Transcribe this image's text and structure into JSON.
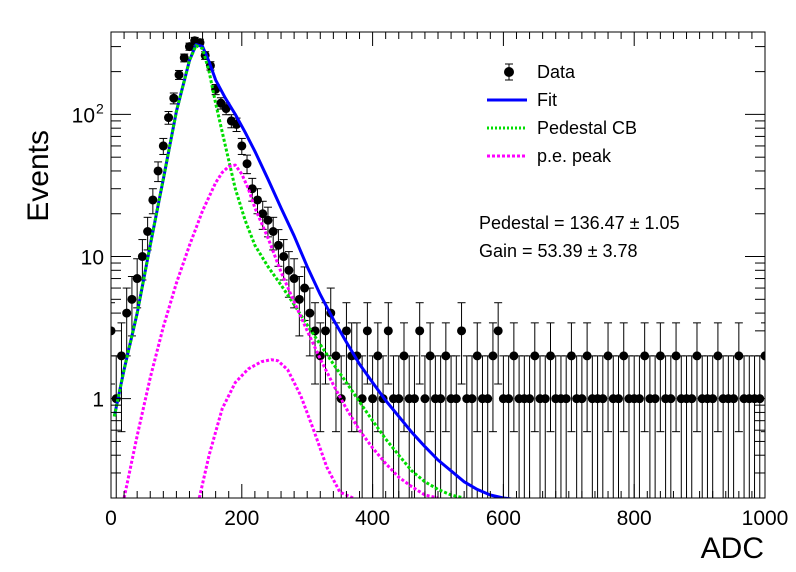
{
  "chart_data": {
    "type": "scatter",
    "title": "",
    "xlabel": "ADC",
    "ylabel": "Events",
    "xlim": [
      0,
      1000
    ],
    "ylim": [
      0.2,
      380
    ],
    "log_y": true,
    "grid": false,
    "legend_placement": "top-right",
    "x_tick_labels": [
      "0",
      "200",
      "400",
      "600",
      "800",
      "1000"
    ],
    "y_tick_labels": [
      {
        "value": 1,
        "base": "1",
        "exp": ""
      },
      {
        "value": 10,
        "base": "10",
        "exp": ""
      },
      {
        "value": 100,
        "base": "10",
        "exp": "2"
      }
    ],
    "legend": [
      {
        "label": "Data",
        "style": "marker",
        "color": "#000000"
      },
      {
        "label": "Fit",
        "style": "solid",
        "color": "#0000ff"
      },
      {
        "label": "Pedestal CB",
        "style": "dotted",
        "color": "#00dd00"
      },
      {
        "label": "p.e. peak",
        "style": "dotted",
        "color": "#ff00ff"
      }
    ],
    "annotations": [
      {
        "text": "Pedestal = 136.47",
        "pm": "±",
        "err": "1.05"
      },
      {
        "text": "Gain = 53.39",
        "pm": "±",
        "err": "3.78"
      }
    ],
    "data_series": {
      "name": "Data",
      "color": "#000000",
      "x": [
        0,
        8,
        16,
        24,
        32,
        40,
        48,
        56,
        64,
        72,
        80,
        88,
        96,
        104,
        112,
        120,
        128,
        136,
        144,
        152,
        160,
        168,
        176,
        184,
        192,
        200,
        208,
        216,
        224,
        232,
        240,
        248,
        256,
        264,
        272,
        280,
        288,
        296,
        304,
        312,
        320,
        328,
        336,
        344,
        352,
        360,
        368,
        376,
        384,
        392,
        400,
        408,
        416,
        424,
        432,
        440,
        448,
        456,
        464,
        472,
        480,
        488,
        496,
        504,
        512,
        520,
        528,
        536,
        544,
        552,
        560,
        568,
        576,
        584,
        592,
        600,
        608,
        616,
        624,
        632,
        640,
        648,
        656,
        664,
        672,
        680,
        688,
        696,
        704,
        712,
        720,
        728,
        736,
        744,
        752,
        760,
        768,
        776,
        784,
        792,
        800,
        808,
        816,
        824,
        832,
        840,
        848,
        856,
        864,
        872,
        880,
        888,
        896,
        904,
        912,
        920,
        928,
        936,
        944,
        952,
        960,
        968,
        976,
        984,
        992,
        1000
      ],
      "y": [
        3,
        1,
        2,
        4,
        5,
        7,
        10,
        15,
        25,
        40,
        60,
        95,
        130,
        190,
        250,
        300,
        330,
        320,
        260,
        220,
        150,
        120,
        110,
        90,
        85,
        60,
        45,
        30,
        25,
        20,
        18,
        15,
        12,
        10,
        8,
        7,
        5,
        6,
        4,
        3,
        2,
        3,
        4,
        2,
        1,
        3,
        2,
        2,
        1,
        3,
        1,
        2,
        1,
        3,
        1,
        1,
        2,
        1,
        1,
        3,
        1,
        2,
        1,
        1,
        2,
        1,
        1,
        3,
        1,
        1,
        2,
        1,
        1,
        2,
        3,
        1,
        1,
        2,
        1,
        1,
        1,
        2,
        1,
        1,
        2,
        1,
        1,
        1,
        2,
        1,
        1,
        2,
        1,
        1,
        1,
        2,
        1,
        1,
        2,
        1,
        1,
        1,
        2,
        1,
        1,
        2,
        1,
        1,
        2,
        1,
        1,
        1,
        2,
        1,
        1,
        1,
        2,
        1,
        1,
        1,
        2,
        1,
        1,
        1,
        1,
        2
      ]
    },
    "curves": [
      {
        "name": "Fit",
        "color": "#0000ff",
        "style": "solid",
        "x": [
          5,
          20,
          40,
          60,
          80,
          100,
          120,
          130,
          140,
          150,
          160,
          175,
          190,
          205,
          220,
          240,
          260,
          280,
          300,
          320,
          340,
          360,
          380,
          400,
          420,
          440,
          460,
          480,
          500,
          520,
          540,
          560,
          580,
          600,
          620
        ],
        "y": [
          0.75,
          1.6,
          4,
          12,
          35,
          105,
          240,
          310,
          300,
          235,
          175,
          130,
          100,
          75,
          55,
          35,
          22,
          14,
          8.5,
          5.4,
          3.6,
          2.5,
          1.75,
          1.3,
          0.97,
          0.75,
          0.58,
          0.46,
          0.37,
          0.31,
          0.26,
          0.23,
          0.21,
          0.2,
          0.195
        ]
      },
      {
        "name": "Pedestal CB",
        "color": "#00dd00",
        "style": "dotted",
        "x": [
          5,
          20,
          40,
          60,
          80,
          100,
          120,
          130,
          140,
          150,
          160,
          175,
          190,
          205,
          220,
          240,
          260,
          280,
          300,
          320,
          340,
          360,
          380,
          400,
          420,
          440,
          460,
          480,
          500,
          520,
          540
        ],
        "y": [
          0.75,
          1.6,
          4,
          12,
          35,
          105,
          240,
          305,
          290,
          200,
          120,
          60,
          30,
          18,
          12,
          8.5,
          6.3,
          4.6,
          3.3,
          2.4,
          1.75,
          1.3,
          0.95,
          0.7,
          0.52,
          0.4,
          0.31,
          0.26,
          0.23,
          0.21,
          0.2
        ]
      },
      {
        "name": "p.e. peak",
        "color": "#ff00ff",
        "style": "dotted",
        "x": [
          20,
          40,
          60,
          80,
          100,
          120,
          140,
          160,
          170,
          180,
          190,
          200,
          210,
          220,
          240,
          260,
          280,
          300,
          320,
          340,
          360,
          380,
          400,
          420,
          440,
          460,
          480,
          500
        ],
        "y": [
          0.2,
          0.55,
          1.4,
          3.2,
          6.5,
          12,
          21,
          33,
          39,
          43,
          44,
          38,
          30,
          22,
          13.5,
          7.8,
          4.8,
          3,
          1.9,
          1.25,
          0.85,
          0.6,
          0.45,
          0.35,
          0.28,
          0.24,
          0.21,
          0.2
        ]
      },
      {
        "name": "p.e. peak 2",
        "color": "#ff00ff",
        "style": "dotted",
        "x": [
          135,
          150,
          170,
          190,
          210,
          230,
          245,
          255,
          270,
          290,
          310,
          330,
          350,
          370
        ],
        "y": [
          0.2,
          0.4,
          0.85,
          1.3,
          1.62,
          1.82,
          1.88,
          1.85,
          1.6,
          1.05,
          0.6,
          0.33,
          0.22,
          0.2
        ]
      }
    ]
  }
}
